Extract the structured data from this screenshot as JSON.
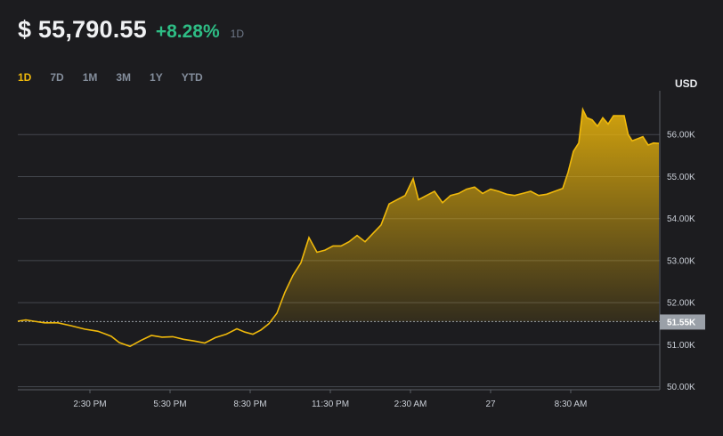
{
  "header": {
    "price": "$ 55,790.55",
    "change": "+8.28%",
    "period": "1D"
  },
  "tabs": [
    "1D",
    "7D",
    "1M",
    "3M",
    "1Y",
    "YTD"
  ],
  "active_tab": "1D",
  "currency": "USD",
  "colors": {
    "background": "#1c1c1f",
    "line": "#f0b90b",
    "positive": "#2ebd85",
    "grid": "#4a4d55",
    "badge": "#9aa0a8"
  },
  "chart_data": {
    "type": "area",
    "title": "",
    "xlabel": "",
    "ylabel": "",
    "currency": "USD",
    "xlim": [
      0,
      24
    ],
    "ylim": [
      49950,
      57000
    ],
    "grid": "horizontal",
    "reference_value": 51550,
    "reference_label": "51.55K",
    "y_ticks": [
      {
        "value": 50000,
        "label": "50.00K"
      },
      {
        "value": 51000,
        "label": "51.00K"
      },
      {
        "value": 52000,
        "label": "52.00K"
      },
      {
        "value": 53000,
        "label": "53.00K"
      },
      {
        "value": 54000,
        "label": "54.00K"
      },
      {
        "value": 55000,
        "label": "55.00K"
      },
      {
        "value": 56000,
        "label": "56.00K"
      }
    ],
    "x_ticks": [
      {
        "value": 2.7,
        "label": "2:30 PM"
      },
      {
        "value": 5.7,
        "label": "5:30 PM"
      },
      {
        "value": 8.7,
        "label": "8:30 PM"
      },
      {
        "value": 11.7,
        "label": "11:30 PM"
      },
      {
        "value": 14.7,
        "label": "2:30 AM"
      },
      {
        "value": 17.7,
        "label": "27"
      },
      {
        "value": 20.7,
        "label": "8:30 AM"
      }
    ],
    "series": [
      {
        "points": [
          [
            0.0,
            51560
          ],
          [
            0.3,
            51590
          ],
          [
            0.6,
            51560
          ],
          [
            1.0,
            51520
          ],
          [
            1.5,
            51520
          ],
          [
            2.0,
            51450
          ],
          [
            2.5,
            51370
          ],
          [
            3.0,
            51320
          ],
          [
            3.3,
            51250
          ],
          [
            3.5,
            51200
          ],
          [
            3.8,
            51050
          ],
          [
            4.2,
            50960
          ],
          [
            4.6,
            51100
          ],
          [
            5.0,
            51220
          ],
          [
            5.4,
            51180
          ],
          [
            5.8,
            51190
          ],
          [
            6.2,
            51130
          ],
          [
            6.6,
            51090
          ],
          [
            7.0,
            51040
          ],
          [
            7.4,
            51170
          ],
          [
            7.8,
            51250
          ],
          [
            8.2,
            51380
          ],
          [
            8.5,
            51300
          ],
          [
            8.8,
            51250
          ],
          [
            9.1,
            51350
          ],
          [
            9.4,
            51500
          ],
          [
            9.7,
            51750
          ],
          [
            10.0,
            52250
          ],
          [
            10.3,
            52650
          ],
          [
            10.6,
            52950
          ],
          [
            10.9,
            53550
          ],
          [
            11.2,
            53200
          ],
          [
            11.5,
            53250
          ],
          [
            11.8,
            53350
          ],
          [
            12.1,
            53350
          ],
          [
            12.4,
            53450
          ],
          [
            12.7,
            53600
          ],
          [
            13.0,
            53450
          ],
          [
            13.3,
            53650
          ],
          [
            13.6,
            53850
          ],
          [
            13.9,
            54350
          ],
          [
            14.2,
            54450
          ],
          [
            14.5,
            54550
          ],
          [
            14.8,
            54950
          ],
          [
            15.0,
            54450
          ],
          [
            15.3,
            54550
          ],
          [
            15.6,
            54650
          ],
          [
            15.9,
            54380
          ],
          [
            16.2,
            54550
          ],
          [
            16.5,
            54600
          ],
          [
            16.8,
            54700
          ],
          [
            17.1,
            54750
          ],
          [
            17.4,
            54600
          ],
          [
            17.7,
            54700
          ],
          [
            18.0,
            54650
          ],
          [
            18.3,
            54580
          ],
          [
            18.6,
            54550
          ],
          [
            18.9,
            54600
          ],
          [
            19.2,
            54650
          ],
          [
            19.5,
            54550
          ],
          [
            19.8,
            54580
          ],
          [
            20.1,
            54650
          ],
          [
            20.4,
            54720
          ],
          [
            20.6,
            55100
          ],
          [
            20.8,
            55600
          ],
          [
            21.0,
            55800
          ],
          [
            21.15,
            56600
          ],
          [
            21.3,
            56400
          ],
          [
            21.5,
            56350
          ],
          [
            21.7,
            56200
          ],
          [
            21.9,
            56400
          ],
          [
            22.1,
            56250
          ],
          [
            22.3,
            56450
          ],
          [
            22.5,
            56450
          ],
          [
            22.7,
            56450
          ],
          [
            22.85,
            56000
          ],
          [
            23.0,
            55850
          ],
          [
            23.2,
            55900
          ],
          [
            23.4,
            55950
          ],
          [
            23.6,
            55750
          ],
          [
            23.8,
            55800
          ],
          [
            24.0,
            55790
          ]
        ]
      }
    ]
  }
}
